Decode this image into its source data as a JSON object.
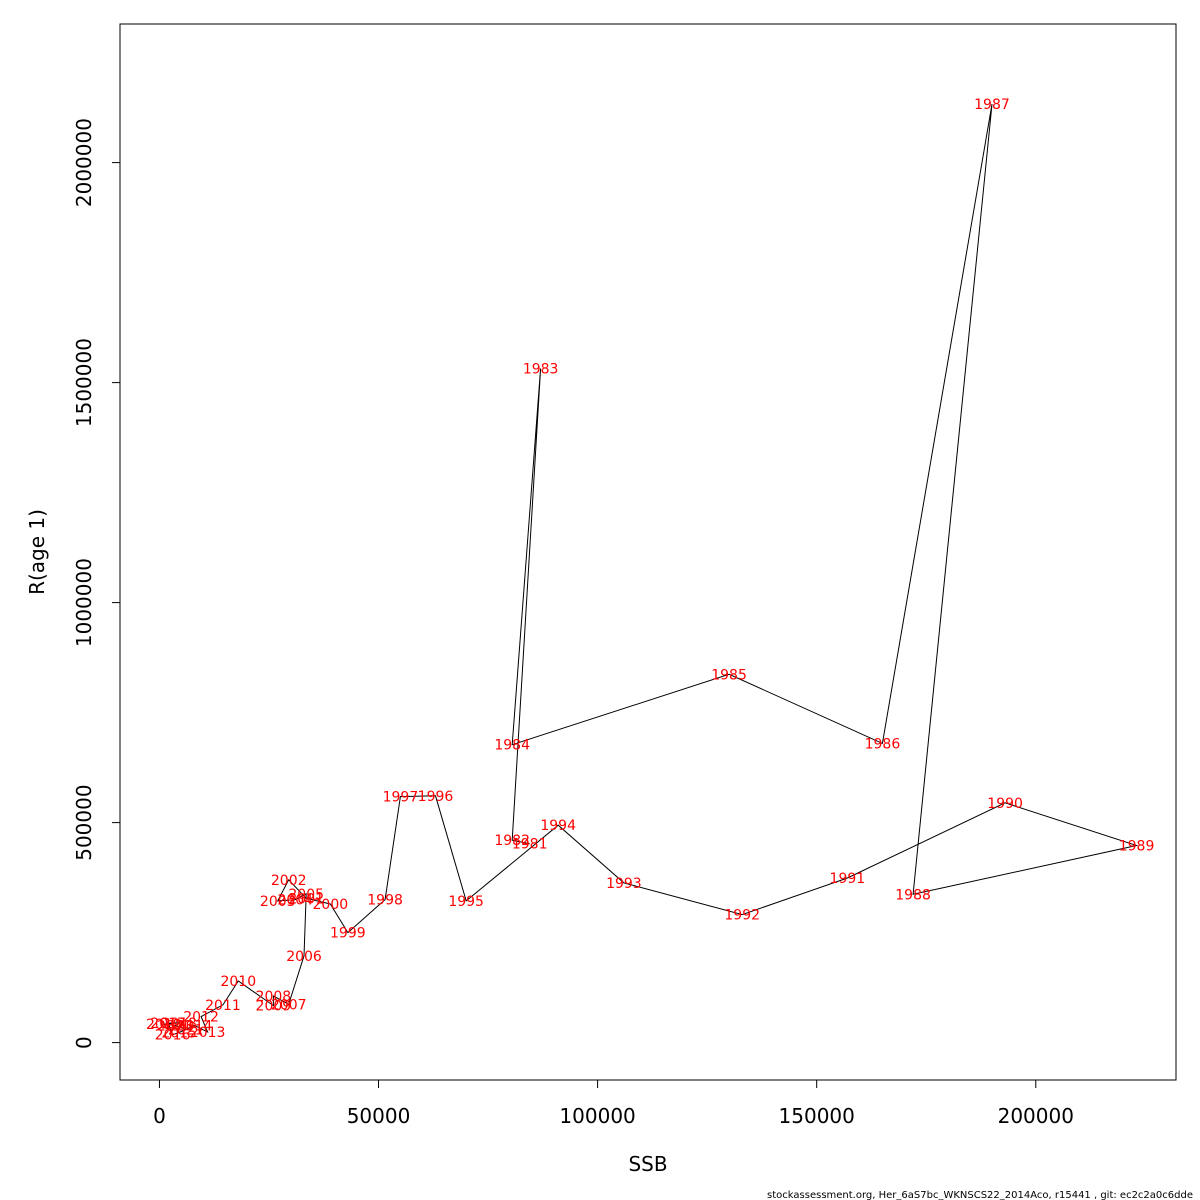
{
  "chart_data": {
    "type": "line",
    "title": "",
    "xlabel": "SSB",
    "ylabel": "R(age 1)",
    "xlim": [
      -9000,
      232000
    ],
    "ylim": [
      -85000,
      2315000
    ],
    "x_ticks": [
      0,
      50000,
      100000,
      150000,
      200000
    ],
    "x_tick_labels": [
      "0",
      "50000",
      "100000",
      "150000",
      "200000"
    ],
    "y_ticks": [
      0,
      500000,
      1000000,
      1500000,
      2000000
    ],
    "y_tick_labels": [
      "0",
      "500000",
      "1000000",
      "1500000",
      "2000000"
    ],
    "grid": false,
    "line_color": "#000000",
    "label_color": "#ff0000",
    "points": [
      {
        "year": "1981",
        "x": 84500,
        "y": 452000
      },
      {
        "year": "1982",
        "x": 80500,
        "y": 460000
      },
      {
        "year": "1983",
        "x": 87000,
        "y": 1532000
      },
      {
        "year": "1984",
        "x": 80500,
        "y": 677000
      },
      {
        "year": "1985",
        "x": 130000,
        "y": 837000
      },
      {
        "year": "1986",
        "x": 165000,
        "y": 680000
      },
      {
        "year": "1987",
        "x": 190000,
        "y": 2133000
      },
      {
        "year": "1988",
        "x": 172000,
        "y": 337000
      },
      {
        "year": "1989",
        "x": 223000,
        "y": 448000
      },
      {
        "year": "1990",
        "x": 193000,
        "y": 545000
      },
      {
        "year": "1991",
        "x": 157000,
        "y": 374000
      },
      {
        "year": "1992",
        "x": 133000,
        "y": 291000
      },
      {
        "year": "1993",
        "x": 106000,
        "y": 363000
      },
      {
        "year": "1994",
        "x": 91000,
        "y": 494000
      },
      {
        "year": "1995",
        "x": 70000,
        "y": 322000
      },
      {
        "year": "1996",
        "x": 63000,
        "y": 561000
      },
      {
        "year": "1997",
        "x": 55000,
        "y": 559000
      },
      {
        "year": "1998",
        "x": 51500,
        "y": 325000
      },
      {
        "year": "1999",
        "x": 43000,
        "y": 250000
      },
      {
        "year": "2000",
        "x": 39000,
        "y": 315000
      },
      {
        "year": "2001",
        "x": 33500,
        "y": 328000
      },
      {
        "year": "2002",
        "x": 29500,
        "y": 370000
      },
      {
        "year": "2003",
        "x": 27000,
        "y": 322000
      },
      {
        "year": "2004",
        "x": 31000,
        "y": 325000
      },
      {
        "year": "2005",
        "x": 33500,
        "y": 338000
      },
      {
        "year": "2006",
        "x": 33000,
        "y": 197000
      },
      {
        "year": "2007",
        "x": 29500,
        "y": 87000
      },
      {
        "year": "2008",
        "x": 26000,
        "y": 106000
      },
      {
        "year": "2009",
        "x": 26000,
        "y": 84000
      },
      {
        "year": "2010",
        "x": 18000,
        "y": 140000
      },
      {
        "year": "2011",
        "x": 14500,
        "y": 86000
      },
      {
        "year": "2012",
        "x": 9500,
        "y": 59000
      },
      {
        "year": "2013",
        "x": 11000,
        "y": 24000
      },
      {
        "year": "2014",
        "x": 8000,
        "y": 39000
      },
      {
        "year": "2015",
        "x": 4500,
        "y": 23000
      },
      {
        "year": "2016",
        "x": 3000,
        "y": 18000
      },
      {
        "year": "2017",
        "x": 2000,
        "y": 44000
      },
      {
        "year": "2018",
        "x": 4500,
        "y": 45000
      },
      {
        "year": "2019",
        "x": 1000,
        "y": 42000
      },
      {
        "year": "2020",
        "x": 3500,
        "y": 39000
      },
      {
        "year": "2021",
        "x": 6000,
        "y": 30000
      }
    ]
  },
  "footer_text": "stockassessment.org, Her_6aS7bc_WKNSCS22_2014Aco, r15441 , git: ec2c2a0c6dde"
}
